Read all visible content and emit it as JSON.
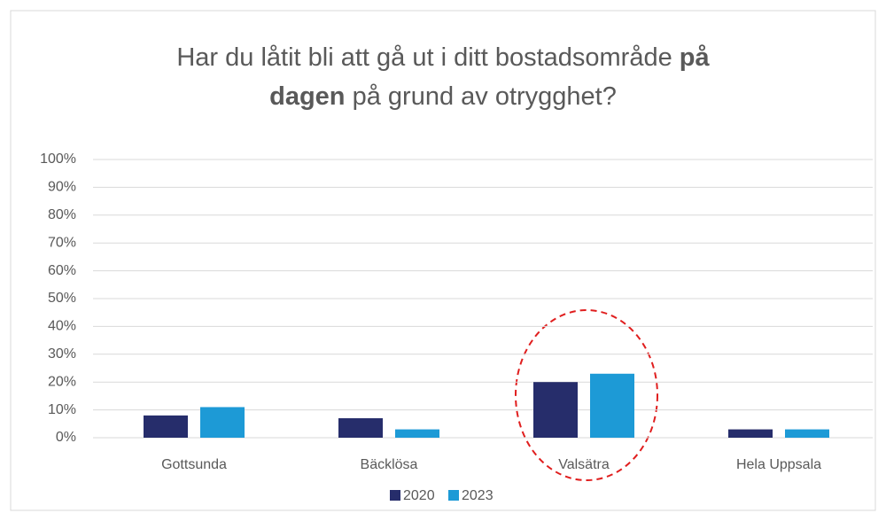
{
  "chart_data": {
    "type": "bar",
    "title_lines": [
      [
        {
          "text": "Har du låtit bli att gå ut i ditt bostadsområde",
          "bold": false
        },
        {
          "text": "på",
          "bold": true
        }
      ],
      [
        {
          "text": "dagen",
          "bold": true
        },
        {
          "text": "på grund av otrygghet?",
          "bold": false
        }
      ]
    ],
    "categories": [
      "Gottsunda",
      "Bäcklösa",
      "Valsätra",
      "Hela Uppsala"
    ],
    "series": [
      {
        "name": "2020",
        "color": "#262d6b",
        "values": [
          8,
          7,
          20,
          3
        ]
      },
      {
        "name": "2023",
        "color": "#1d9ad6",
        "values": [
          11,
          3,
          23,
          3
        ]
      }
    ],
    "ylim": [
      0,
      100
    ],
    "yticks": [
      {
        "value": 0,
        "label": "0%"
      },
      {
        "value": 10,
        "label": "10%"
      },
      {
        "value": 20,
        "label": "20%"
      },
      {
        "value": 30,
        "label": "30%"
      },
      {
        "value": 40,
        "label": "40%"
      },
      {
        "value": 50,
        "label": "50%"
      },
      {
        "value": 60,
        "label": "60%"
      },
      {
        "value": 70,
        "label": "70%"
      },
      {
        "value": 80,
        "label": "80%"
      },
      {
        "value": 90,
        "label": "90%"
      },
      {
        "value": 100,
        "label": "100%"
      }
    ],
    "grid": true,
    "legend": "bottom"
  }
}
